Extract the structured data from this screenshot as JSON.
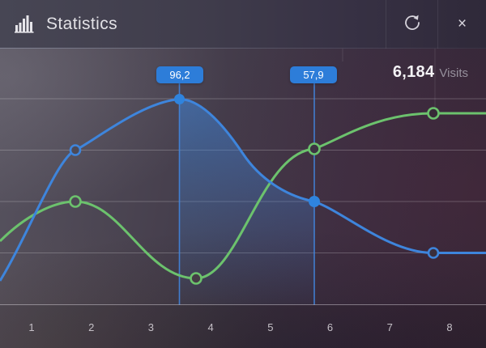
{
  "header": {
    "title": "Statistics",
    "icon": "bar-chart",
    "refresh_button": "refresh",
    "close_button": "×"
  },
  "stats": {
    "visits_value": "6,184",
    "visits_label": "Visits"
  },
  "tooltips": [
    {
      "value": "96,2"
    },
    {
      "value": "57,9"
    }
  ],
  "x_axis": {
    "labels": [
      "1",
      "2",
      "3",
      "4",
      "5",
      "6",
      "7",
      "8"
    ]
  },
  "colors": {
    "accent_blue": "#4285dd",
    "line_blue": "#3e85dc",
    "line_green": "#6cc26d",
    "tooltip_bg": "#2d7dd9",
    "fill_blue": "#3e85dc"
  },
  "chart_data": {
    "type": "line",
    "title": "Statistics",
    "x_tick_labels": [
      "1",
      "2",
      "3",
      "4",
      "5",
      "6",
      "7",
      "8"
    ],
    "y_axis_visible": false,
    "grid": "horizontal",
    "legend": "none",
    "highlighted_points": [
      {
        "x": 3.5,
        "series": "blue",
        "value": "96,2"
      },
      {
        "x": 5.7,
        "series": "blue",
        "value": "57,9"
      }
    ],
    "annotation": {
      "value": "6,184",
      "label": "Visits"
    },
    "series": [
      {
        "name": "blue",
        "color": "#3e85dc",
        "marker_points_x": [
          1.7,
          3.5,
          5.7,
          7.7
        ],
        "points": [
          [
            0.5,
            28
          ],
          [
            1.7,
            77.1
          ],
          [
            3.5,
            96.2
          ],
          [
            5.7,
            57.9
          ],
          [
            7.7,
            38.7
          ],
          [
            8.6,
            38.7
          ]
        ],
        "area_fill_between_x": [
          3.5,
          5.7
        ]
      },
      {
        "name": "green",
        "color": "#6cc26d",
        "marker_points_x": [
          1.7,
          3.75,
          5.7,
          7.7
        ],
        "points": [
          [
            0.5,
            43
          ],
          [
            1.7,
            57.9
          ],
          [
            3.75,
            29.1
          ],
          [
            5.7,
            77.6
          ],
          [
            7.7,
            90.9
          ],
          [
            8.6,
            90.9
          ]
        ]
      }
    ]
  }
}
